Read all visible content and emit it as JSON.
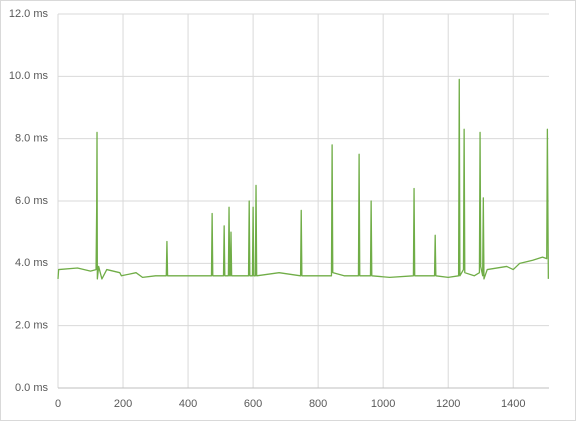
{
  "chart_data": {
    "type": "line",
    "x": [
      0,
      2,
      60,
      100,
      117,
      119,
      120,
      121,
      125,
      135,
      150,
      190,
      195,
      240,
      260,
      300,
      333,
      335,
      337,
      400,
      472,
      474,
      476,
      509,
      511,
      513,
      524,
      526,
      528,
      530,
      532,
      534,
      586,
      588,
      590,
      598,
      600,
      602,
      607,
      609,
      611,
      680,
      746,
      748,
      750,
      800,
      841,
      843,
      845,
      880,
      924,
      926,
      928,
      961,
      963,
      965,
      1020,
      1093,
      1095,
      1097,
      1158,
      1160,
      1162,
      1200,
      1232,
      1234,
      1236,
      1247,
      1249,
      1251,
      1280,
      1296,
      1298,
      1300,
      1306,
      1308,
      1310,
      1320,
      1380,
      1400,
      1420,
      1460,
      1490,
      1503,
      1505,
      1508
    ],
    "series": [
      {
        "color": "#70ad47",
        "values": [
          3.5,
          3.8,
          3.85,
          3.75,
          3.8,
          5.8,
          8.2,
          3.5,
          3.9,
          3.5,
          3.8,
          3.7,
          3.6,
          3.7,
          3.55,
          3.6,
          3.6,
          4.7,
          3.6,
          3.6,
          3.6,
          5.6,
          3.6,
          3.6,
          5.2,
          3.6,
          3.6,
          5.8,
          3.6,
          3.6,
          5.0,
          3.6,
          3.6,
          6.0,
          3.6,
          3.6,
          5.8,
          3.6,
          3.6,
          6.5,
          3.6,
          3.7,
          3.6,
          5.7,
          3.6,
          3.6,
          3.6,
          7.8,
          3.7,
          3.6,
          3.6,
          7.5,
          3.6,
          3.6,
          6.0,
          3.6,
          3.55,
          3.6,
          6.4,
          3.6,
          3.6,
          4.9,
          3.6,
          3.55,
          3.6,
          9.9,
          3.6,
          3.8,
          8.3,
          3.7,
          3.6,
          3.7,
          8.2,
          3.9,
          3.6,
          6.1,
          3.5,
          3.8,
          3.9,
          3.8,
          4.0,
          4.1,
          4.2,
          4.15,
          8.3,
          3.5
        ]
      }
    ],
    "xlim": [
      0,
      1510
    ],
    "xticks": [
      0,
      200,
      400,
      600,
      800,
      1000,
      1200,
      1400
    ],
    "ylim": [
      0,
      12
    ],
    "yticks": [
      {
        "value": 0,
        "label": "0.0 ms"
      },
      {
        "value": 2,
        "label": "2.0 ms"
      },
      {
        "value": 4,
        "label": "4.0 ms"
      },
      {
        "value": 6,
        "label": "6.0 ms"
      },
      {
        "value": 8,
        "label": "8.0 ms"
      },
      {
        "value": 10,
        "label": "10.0 ms"
      },
      {
        "value": 12,
        "label": "12.0 ms"
      }
    ],
    "grid": true
  }
}
